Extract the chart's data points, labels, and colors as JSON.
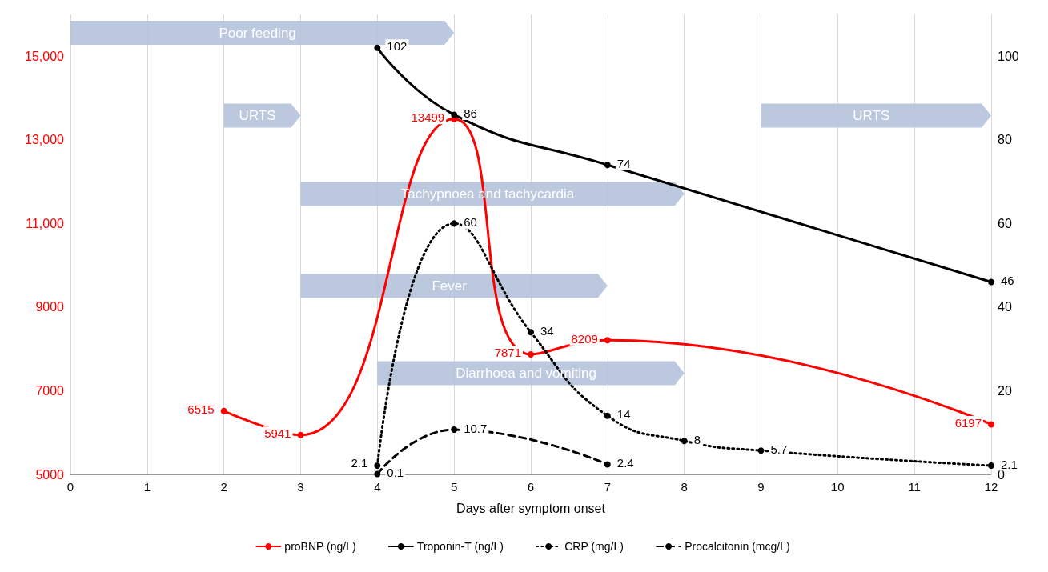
{
  "chart_data": {
    "type": "line",
    "xlabel": "Days after symptom onset",
    "xlim": [
      0,
      12
    ],
    "xticks": [
      0,
      1,
      2,
      3,
      4,
      5,
      6,
      7,
      8,
      9,
      10,
      11,
      12
    ],
    "ylim": [
      5000,
      16000
    ],
    "yticks": [
      5000,
      7000,
      9000,
      {
        "value": 11000,
        "label": "11,000"
      },
      {
        "value": 13000,
        "label": "13,000"
      },
      {
        "value": 15000,
        "label": "15,000"
      }
    ],
    "y2lim": [
      0,
      110
    ],
    "y2ticks": [
      0,
      20,
      40,
      60,
      80,
      100
    ],
    "grid": "x",
    "legend": "bottom",
    "marker": "circle",
    "data_labels": true,
    "series": [
      {
        "name": "proBNP (ng/L)",
        "color": "#ff0000",
        "x": [
          2,
          3,
          5,
          6,
          7,
          12
        ],
        "values": [
          6515,
          5941,
          13499,
          7871,
          8209,
          6197
        ],
        "line_style": "solid"
      },
      {
        "name": "Troponin-T (ng/L)",
        "color": "#000000",
        "axis": "y2",
        "x": [
          4,
          5,
          7,
          12
        ],
        "values": [
          102,
          86,
          74,
          46
        ],
        "line_style": "solid"
      },
      {
        "name": "CRP (mg/L)",
        "color": "#000000",
        "axis": "y2",
        "x": [
          4,
          5,
          6,
          7,
          8,
          9,
          12
        ],
        "values": [
          2.1,
          60,
          34,
          14,
          8,
          5.7,
          2.1
        ],
        "line_style": "dotted"
      },
      {
        "name": "Procalcitonin (mcg/L)",
        "color": "#000000",
        "axis": "y2",
        "x": [
          4,
          5,
          7
        ],
        "values": [
          0.1,
          10.7,
          2.4
        ],
        "line_style": "dashed"
      }
    ],
    "bands": [
      {
        "axis": "x",
        "from": 0,
        "to": 5,
        "label": "Poor feeding",
        "color": "#b4c2da"
      },
      {
        "axis": "x",
        "from": 2,
        "to": 3,
        "label": "URTS",
        "color": "#b4c2da"
      },
      {
        "axis": "x",
        "from": 9,
        "to": 12,
        "label": "URTS",
        "color": "#b4c2da"
      },
      {
        "axis": "x",
        "from": 3,
        "to": 8,
        "label": "Tachypnoea and tachycardia",
        "color": "#b4c2da"
      },
      {
        "axis": "x",
        "from": 3,
        "to": 7,
        "label": "Fever",
        "color": "#b4c2da"
      },
      {
        "axis": "x",
        "from": 4,
        "to": 8,
        "label": "Diarrhoea and vomiting",
        "color": "#b4c2da"
      }
    ]
  }
}
